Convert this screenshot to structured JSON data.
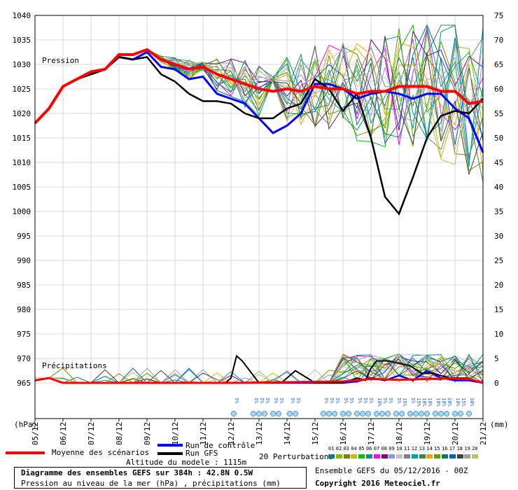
{
  "chart_data": {
    "type": "line",
    "title": "Diagramme des ensembles GEFS sur 384h : 42.8N 0.5W",
    "subtitle": "Pression au niveau de la mer (hPa) , précipitations (mm)",
    "left_axis_unit": "(hPa)",
    "right_axis_unit": "(mm)",
    "pressure_label": "Pression",
    "precip_label": "Précipitations",
    "y_left_range": [
      965,
      1040
    ],
    "y_left_ticks": [
      1040,
      1035,
      1030,
      1025,
      1020,
      1015,
      1010,
      1005,
      1000,
      995,
      990,
      985,
      980,
      975,
      970,
      965
    ],
    "y_right_range": [
      0,
      75
    ],
    "y_right_ticks": [
      75,
      70,
      65,
      60,
      55,
      50,
      45,
      40,
      35,
      30,
      25,
      20,
      15,
      10,
      5,
      0
    ],
    "x_range_days": [
      5,
      21
    ],
    "x_labels": [
      "05/12",
      "06/12",
      "07/12",
      "08/12",
      "09/12",
      "10/12",
      "11/12",
      "12/12",
      "13/12",
      "14/12",
      "15/12",
      "16/12",
      "17/12",
      "18/12",
      "19/12",
      "20/12",
      "21/12"
    ],
    "grid": true,
    "series": [
      {
        "name": "Moyenne des scénarios",
        "color": "#ff0000",
        "x": [
          5.0,
          5.5,
          6.0,
          6.5,
          7.0,
          7.5,
          8.0,
          8.5,
          9.0,
          9.5,
          10.0,
          10.5,
          11.0,
          11.5,
          12.0,
          12.5,
          13.0,
          13.5,
          14.0,
          14.5,
          15.0,
          15.5,
          16.0,
          16.5,
          17.0,
          17.5,
          18.0,
          18.5,
          19.0,
          19.5,
          20.0,
          20.5,
          21.0
        ],
        "y": [
          1018,
          1021,
          1025.5,
          1027,
          1028.5,
          1029,
          1032,
          1032,
          1033,
          1031,
          1030,
          1029,
          1029.5,
          1028,
          1027,
          1026,
          1025,
          1024.5,
          1025,
          1024.5,
          1025.5,
          1025,
          1025,
          1024,
          1024.5,
          1024.5,
          1025.5,
          1025.5,
          1025.5,
          1024.5,
          1024.5,
          1022,
          1022.5
        ]
      },
      {
        "name": "Run de contrôle",
        "color": "#0000ff",
        "x": [
          5.0,
          5.5,
          6.0,
          6.5,
          7.0,
          7.5,
          8.0,
          8.5,
          9.0,
          9.5,
          10.0,
          10.5,
          11.0,
          11.5,
          12.0,
          12.5,
          13.0,
          13.5,
          14.0,
          14.5,
          15.0,
          15.5,
          16.0,
          16.5,
          17.0,
          17.5,
          18.0,
          18.5,
          19.0,
          19.5,
          20.0,
          20.5,
          21.0
        ],
        "y": [
          1018,
          1021,
          1025.5,
          1027,
          1028,
          1029,
          1031.5,
          1031,
          1032.5,
          1029.5,
          1029,
          1027,
          1027.5,
          1024,
          1023,
          1022,
          1019,
          1016,
          1017.5,
          1020,
          1026,
          1026,
          1025,
          1023,
          1024,
          1024.5,
          1024,
          1023,
          1024,
          1024,
          1021,
          1019,
          1012
        ]
      },
      {
        "name": "Run GFS",
        "color": "#000000",
        "x": [
          5.0,
          5.5,
          6.0,
          6.5,
          7.0,
          7.5,
          8.0,
          8.5,
          9.0,
          9.5,
          10.0,
          10.5,
          11.0,
          11.5,
          12.0,
          12.5,
          13.0,
          13.5,
          14.0,
          14.5,
          15.0,
          15.5,
          16.0,
          16.5,
          17.0,
          17.5,
          18.0,
          18.5,
          19.0,
          19.5,
          20.0,
          20.5,
          21.0
        ],
        "y": [
          1018,
          1021,
          1025.5,
          1027,
          1028,
          1029,
          1031.5,
          1031,
          1031.5,
          1028,
          1026.5,
          1024,
          1022.5,
          1022.5,
          1022,
          1020,
          1019,
          1019,
          1021,
          1022,
          1027,
          1025,
          1020.5,
          1024,
          1015,
          1003,
          999.5,
          1007,
          1015,
          1019.5,
          1020.5,
          1020,
          1023
        ]
      }
    ],
    "legend": {
      "mean": "Moyenne des scénarios",
      "control": "Run de contrôle",
      "gfs": "Run GFS",
      "perturbations": "20 Perturbations",
      "perturbation_numbers": [
        "01",
        "02",
        "03",
        "04",
        "05",
        "06",
        "07",
        "08",
        "09",
        "10",
        "11",
        "12",
        "13",
        "14",
        "15",
        "16",
        "17",
        "18",
        "19",
        "20"
      ],
      "perturbation_colors": [
        "#008080",
        "#80c000",
        "#808000",
        "#c0c000",
        "#00c000",
        "#009090",
        "#ff00ff",
        "#800080",
        "#9090ff",
        "#c0c0c0",
        "#808080",
        "#00a0a0",
        "#408040",
        "#ffa000",
        "#60a000",
        "#008060",
        "#0060c0",
        "#404040",
        "#a0a0a0",
        "#c0c060"
      ]
    },
    "snow_probability": [
      {
        "day": 12.1,
        "label": "5%"
      },
      {
        "day": 12.8,
        "label": "5%"
      },
      {
        "day": 13.0,
        "label": "5%"
      },
      {
        "day": 13.2,
        "label": "5%"
      },
      {
        "day": 13.5,
        "label": "5%"
      },
      {
        "day": 13.7,
        "label": "5%"
      },
      {
        "day": 14.1,
        "label": "5%"
      },
      {
        "day": 14.3,
        "label": "5%"
      },
      {
        "day": 15.3,
        "label": "5%"
      },
      {
        "day": 15.5,
        "label": "5%"
      },
      {
        "day": 15.7,
        "label": "5%"
      },
      {
        "day": 16.0,
        "label": "5%"
      },
      {
        "day": 16.2,
        "label": "5%"
      },
      {
        "day": 16.5,
        "label": "5%"
      },
      {
        "day": 16.7,
        "label": "5%"
      },
      {
        "day": 16.9,
        "label": "5%"
      },
      {
        "day": 17.2,
        "label": "10%"
      },
      {
        "day": 17.4,
        "label": "5%"
      },
      {
        "day": 17.6,
        "label": "5%"
      },
      {
        "day": 17.9,
        "label": "5%"
      },
      {
        "day": 18.1,
        "label": "15%"
      },
      {
        "day": 18.4,
        "label": "5%"
      },
      {
        "day": 18.6,
        "label": "15%"
      },
      {
        "day": 18.8,
        "label": "10%"
      },
      {
        "day": 19.0,
        "label": "10%"
      },
      {
        "day": 19.3,
        "label": "10%"
      },
      {
        "day": 19.5,
        "label": "10%"
      },
      {
        "day": 19.7,
        "label": "20%"
      },
      {
        "day": 20.0,
        "label": "10%"
      },
      {
        "day": 20.2,
        "label": "15%"
      },
      {
        "day": 20.5,
        "label": "30%"
      }
    ],
    "precipitation": {
      "control": {
        "x": [
          5,
          5.5,
          6,
          12,
          14,
          15,
          16,
          16.5,
          17,
          17.5,
          18,
          18.5,
          19,
          19.5,
          20,
          20.5,
          21
        ],
        "y": [
          0.5,
          1,
          0,
          0,
          0,
          0,
          0,
          0.3,
          1,
          0.5,
          1.5,
          0.5,
          2.5,
          1,
          0.5,
          0.5,
          0
        ]
      },
      "gfs": {
        "x": [
          5,
          5.5,
          6,
          11.8,
          12.0,
          12.2,
          12.4,
          13,
          13.8,
          14.1,
          14.3,
          15,
          16,
          16.5,
          16.8,
          17.0,
          17.2,
          17.6,
          18.0,
          18.4,
          18.8,
          19.2,
          19.8,
          20.4,
          21
        ],
        "y": [
          0.5,
          1,
          0,
          0,
          1,
          5.5,
          4.5,
          0,
          0,
          1.5,
          2.5,
          0,
          0,
          1,
          0.5,
          3,
          4.5,
          4.5,
          4,
          3.5,
          2,
          2,
          1,
          1,
          0
        ]
      },
      "mean": {
        "x": [
          5,
          5.5,
          6,
          12,
          16,
          17,
          18,
          19,
          20,
          20.5,
          21
        ],
        "y": [
          0.5,
          1,
          0,
          0,
          0.3,
          0.8,
          0.6,
          0.8,
          0.9,
          0.8,
          0
        ]
      }
    }
  },
  "footer": {
    "altitude": "Altitude du modele : 1115m",
    "title": "Diagramme des ensembles GEFS sur 384h : 42.8N 0.5W",
    "subtitle": "Pression au niveau de la mer (hPa) , précipitations (mm)",
    "ensemble": "Ensemble GEFS du 05/12/2016 - 00Z",
    "copyright": "Copyright 2016 Meteociel.fr"
  }
}
